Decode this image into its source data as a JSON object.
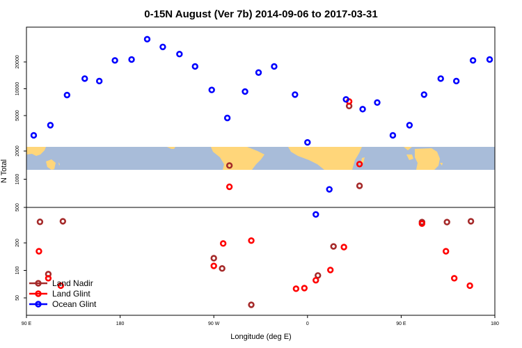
{
  "chart_data": {
    "type": "scatter",
    "title": "0-15N August (Ver 7b)   2014-09-06 to 2017-03-31",
    "xlabel": "Longitude (deg E)",
    "ylabel": "N Total",
    "y_scale": "log",
    "x_ticks": [
      {
        "value": 90,
        "label": "90 E"
      },
      {
        "value": 180,
        "label": "180"
      },
      {
        "value": 270,
        "label": "90 W"
      },
      {
        "value": 360,
        "label": "0"
      },
      {
        "value": 450,
        "label": "90 E"
      },
      {
        "value": 540,
        "label": "180"
      }
    ],
    "xlim": [
      90,
      540
    ],
    "upper_y_ticks": [
      2000,
      5000,
      10000,
      20000
    ],
    "lower_y_ticks": [
      500,
      1000
    ],
    "bottom_y_ticks": [
      50,
      100,
      200
    ],
    "colors": {
      "land_nadir": "#a52a2a",
      "land_glint": "#ff0000",
      "ocean_glint": "#0000ff",
      "ocean": "#a8bcd9",
      "land": "#ffd67a"
    },
    "series": [
      {
        "name": "Land Nadir",
        "color": "#a52a2a",
        "panel": "main",
        "x": [
          285,
          400,
          410
        ],
        "y": [
          1400,
          6400,
          850
        ]
      },
      {
        "name": "Land Glint",
        "color": "#ff0000",
        "panel": "main",
        "x": [
          285,
          400,
          410
        ],
        "y": [
          830,
          7200,
          1450
        ]
      },
      {
        "name": "Ocean Glint",
        "color": "#0000ff",
        "panel": "main",
        "x": [
          97,
          113,
          129,
          146,
          160,
          175,
          191,
          206,
          221,
          237,
          252,
          268,
          283,
          300,
          313,
          328,
          348,
          360,
          381,
          397,
          413,
          427,
          442,
          458,
          472,
          488,
          503,
          519,
          535
        ],
        "y": [
          3000,
          3900,
          8500,
          13000,
          12200,
          20800,
          21300,
          36000,
          29500,
          24500,
          17800,
          9700,
          4700,
          9300,
          15200,
          17800,
          8600,
          2500,
          780,
          7600,
          5900,
          7000,
          3000,
          3900,
          8600,
          13000,
          12200,
          20800,
          21300
        ]
      },
      {
        "name": "Land Nadir (bottom)",
        "color": "#a52a2a",
        "panel": "bottom",
        "x": [
          103,
          111,
          125,
          270,
          278,
          306,
          370,
          385,
          470,
          494,
          517
        ],
        "y": [
          340,
          91,
          345,
          136,
          105,
          42,
          88,
          183,
          338,
          338,
          345
        ],
        "label": "Land Nadir"
      },
      {
        "name": "Land Glint (bottom)",
        "color": "#ff0000",
        "panel": "bottom",
        "x": [
          102,
          111,
          123,
          270,
          279,
          306,
          349,
          357,
          368,
          382,
          395,
          470,
          493,
          501,
          516
        ],
        "y": [
          162,
          82,
          68,
          112,
          197,
          212,
          63,
          64,
          78,
          101,
          180,
          325,
          162,
          82,
          68
        ],
        "label": "Land Glint"
      },
      {
        "name": "Ocean Glint (bottom)",
        "color": "#0000ff",
        "panel": "bottom",
        "x": [
          368
        ],
        "y": [
          410
        ],
        "label": "Ocean Glint"
      }
    ],
    "legend": {
      "position": "bottom-left",
      "entries": [
        {
          "label": "Land Nadir",
          "color": "#a52a2a"
        },
        {
          "label": "Land Glint",
          "color": "#ff0000"
        },
        {
          "label": "Ocean Glint",
          "color": "#0000ff"
        }
      ]
    }
  }
}
